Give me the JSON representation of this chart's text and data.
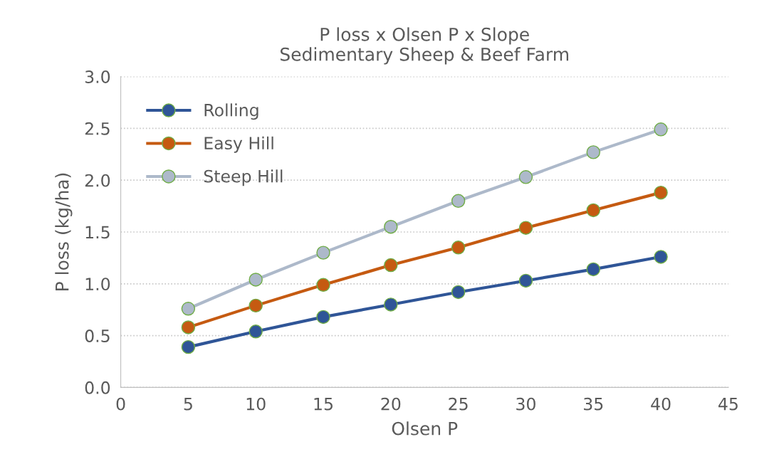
{
  "chart_data": {
    "type": "line",
    "title": "P loss x Olsen P x Slope\nSedimentary Sheep & Beef Farm",
    "xlabel": "Olsen P",
    "ylabel": "P loss (kg/ha)",
    "x": [
      5,
      10,
      15,
      20,
      25,
      30,
      35,
      40
    ],
    "series": [
      {
        "name": "Rolling",
        "color": "#2f5597",
        "values": [
          0.39,
          0.54,
          0.68,
          0.8,
          0.92,
          1.03,
          1.14,
          1.26
        ]
      },
      {
        "name": "Easy Hill",
        "color": "#c55a11",
        "values": [
          0.58,
          0.79,
          0.99,
          1.18,
          1.35,
          1.54,
          1.71,
          1.88
        ]
      },
      {
        "name": "Steep Hill",
        "color": "#adb9ca",
        "values": [
          0.76,
          1.04,
          1.3,
          1.55,
          1.8,
          2.03,
          2.27,
          2.49
        ]
      }
    ],
    "xlim": [
      0,
      45
    ],
    "xticks": [
      0,
      5,
      10,
      15,
      20,
      25,
      30,
      35,
      40,
      45
    ],
    "ylim": [
      0,
      3
    ],
    "yticks": [
      {
        "value": 0,
        "label": "0.0"
      },
      {
        "value": 0.5,
        "label": "0.5"
      },
      {
        "value": 1,
        "label": "1.0"
      },
      {
        "value": 1.5,
        "label": "1.5"
      },
      {
        "value": 2,
        "label": "2.0"
      },
      {
        "value": 2.5,
        "label": "2.5"
      },
      {
        "value": 3,
        "label": "3.0"
      }
    ],
    "grid": "y",
    "legend": "top left",
    "marker": "circle",
    "line_style": "solid"
  }
}
